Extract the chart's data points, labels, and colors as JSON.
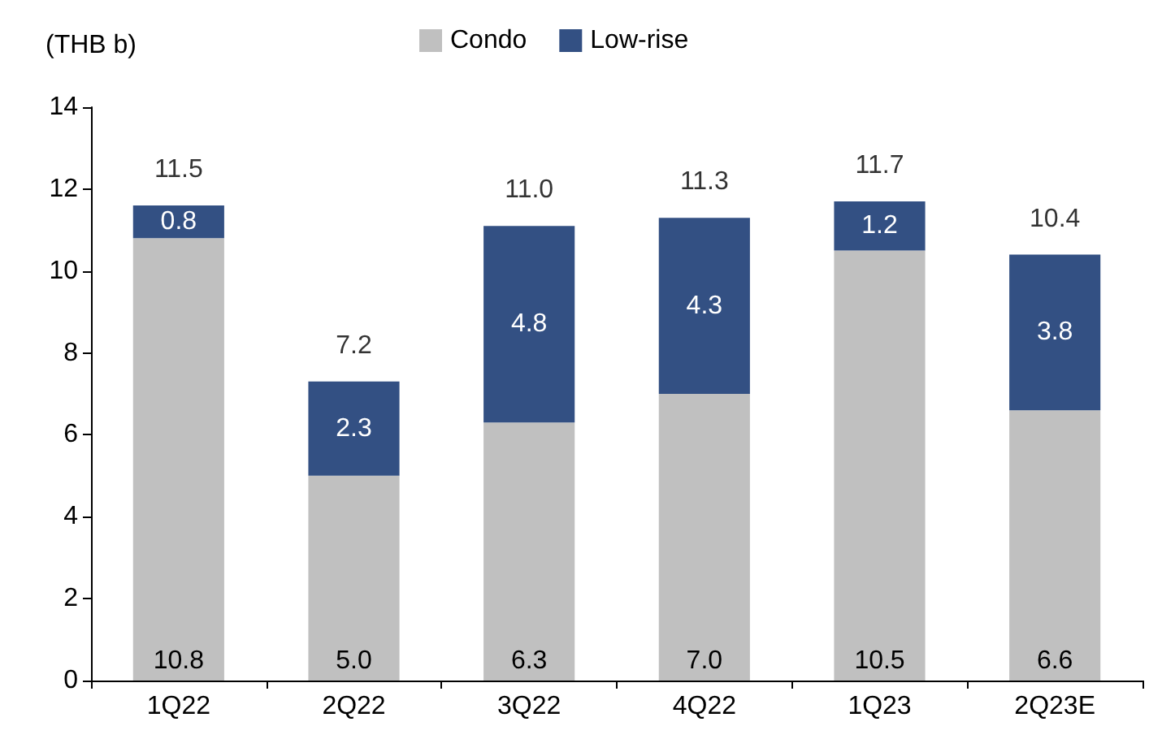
{
  "chart_data": {
    "type": "bar",
    "stacked": true,
    "ylabel": "(THB b)",
    "categories": [
      "1Q22",
      "2Q22",
      "3Q22",
      "4Q22",
      "1Q23",
      "2Q23E"
    ],
    "series": [
      {
        "name": "Condo",
        "color": "#c0c0c0",
        "values": [
          10.8,
          5.0,
          6.3,
          7.0,
          10.5,
          6.6
        ],
        "value_labels": [
          "10.8",
          "5.0",
          "6.3",
          "7.0",
          "10.5",
          "6.6"
        ]
      },
      {
        "name": "Low-rise",
        "color": "#335083",
        "values": [
          0.8,
          2.3,
          4.8,
          4.3,
          1.2,
          3.8
        ],
        "value_labels": [
          "0.8",
          "2.3",
          "4.8",
          "4.3",
          "1.2",
          "3.8"
        ]
      }
    ],
    "totals": [
      "11.5",
      "7.2",
      "11.0",
      "11.3",
      "11.7",
      "10.4"
    ],
    "ylim": [
      0,
      14
    ],
    "yticks": [
      0,
      2,
      4,
      6,
      8,
      10,
      12,
      14
    ],
    "grid": false,
    "legend": "top"
  }
}
